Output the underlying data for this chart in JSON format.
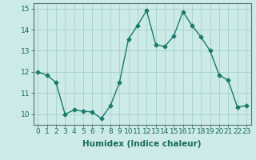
{
  "x": [
    0,
    1,
    2,
    3,
    4,
    5,
    6,
    7,
    8,
    9,
    10,
    11,
    12,
    13,
    14,
    15,
    16,
    17,
    18,
    19,
    20,
    21,
    22,
    23
  ],
  "y": [
    12.0,
    11.85,
    11.5,
    10.0,
    10.2,
    10.15,
    10.1,
    9.8,
    10.4,
    11.5,
    13.55,
    14.2,
    14.9,
    13.3,
    13.2,
    13.7,
    14.85,
    14.2,
    13.65,
    13.0,
    11.85,
    11.6,
    10.35,
    10.4
  ],
  "line_color": "#1a7a6e",
  "bg_color": "#cceae7",
  "grid_color": "#aad4d0",
  "xlabel": "Humidex (Indice chaleur)",
  "ylim": [
    9.5,
    15.25
  ],
  "xlim": [
    -0.5,
    23.5
  ],
  "yticks": [
    10,
    11,
    12,
    13,
    14,
    15
  ],
  "xticks": [
    0,
    1,
    2,
    3,
    4,
    5,
    6,
    7,
    8,
    9,
    10,
    11,
    12,
    13,
    14,
    15,
    16,
    17,
    18,
    19,
    20,
    21,
    22,
    23
  ],
  "xtick_labels": [
    "0",
    "1",
    "2",
    "3",
    "4",
    "5",
    "6",
    "7",
    "8",
    "9",
    "10",
    "11",
    "12",
    "13",
    "14",
    "15",
    "16",
    "17",
    "18",
    "19",
    "20",
    "21",
    "22",
    "23"
  ],
  "marker": "D",
  "marker_size": 2.5,
  "line_width": 1.0,
  "tick_fontsize": 6.5,
  "xlabel_fontsize": 7.5
}
